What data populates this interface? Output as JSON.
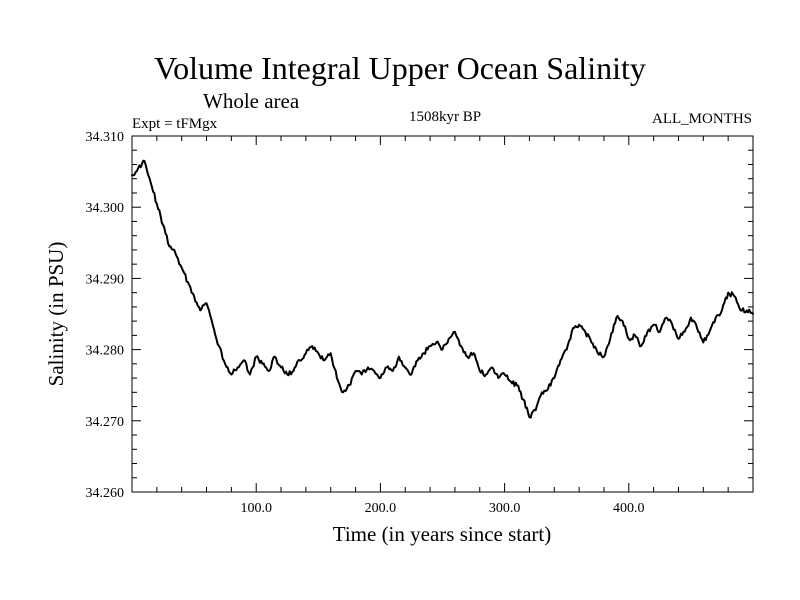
{
  "chart_data": {
    "type": "line",
    "title": "Volume Integral Upper Ocean Salinity",
    "subtitle": "Whole area",
    "annotations": {
      "left": "Expt = tFMgx",
      "center": "1508kyr BP",
      "right": "ALL_MONTHS"
    },
    "xlabel": "Time (in years since start)",
    "ylabel": "Salinity (in PSU)",
    "xlim": [
      0,
      500
    ],
    "ylim": [
      34.26,
      34.31
    ],
    "x_ticks": [
      100,
      200,
      300,
      400
    ],
    "x_tick_labels": [
      "100.0",
      "200.0",
      "300.0",
      "400.0"
    ],
    "y_ticks": [
      34.26,
      34.27,
      34.28,
      34.29,
      34.3,
      34.31
    ],
    "y_tick_labels": [
      "34.260",
      "34.270",
      "34.280",
      "34.290",
      "34.300",
      "34.310"
    ],
    "grid": false,
    "series": [
      {
        "name": "Salinity",
        "x": [
          0,
          5,
          10,
          15,
          20,
          25,
          30,
          35,
          40,
          45,
          50,
          55,
          60,
          65,
          70,
          75,
          80,
          85,
          90,
          95,
          100,
          105,
          110,
          115,
          120,
          125,
          130,
          135,
          140,
          145,
          150,
          155,
          160,
          165,
          170,
          175,
          180,
          185,
          190,
          195,
          200,
          205,
          210,
          215,
          220,
          225,
          230,
          235,
          240,
          245,
          250,
          255,
          260,
          265,
          270,
          275,
          280,
          285,
          290,
          295,
          300,
          305,
          310,
          315,
          320,
          325,
          330,
          335,
          340,
          345,
          350,
          355,
          360,
          365,
          370,
          375,
          380,
          385,
          390,
          395,
          400,
          405,
          410,
          415,
          420,
          425,
          430,
          435,
          440,
          445,
          450,
          455,
          460,
          465,
          470,
          475,
          480,
          485,
          490,
          495,
          500
        ],
        "values": [
          34.3045,
          34.3055,
          34.3065,
          34.3035,
          34.3005,
          34.2975,
          34.2945,
          34.2935,
          34.2915,
          34.2895,
          34.2875,
          34.2855,
          34.2865,
          34.2835,
          34.2805,
          34.278,
          34.2765,
          34.2775,
          34.2785,
          34.2765,
          34.279,
          34.278,
          34.277,
          34.279,
          34.2775,
          34.2765,
          34.277,
          34.2785,
          34.2795,
          34.2805,
          34.2795,
          34.2785,
          34.2795,
          34.276,
          34.274,
          34.275,
          34.277,
          34.2765,
          34.2775,
          34.277,
          34.276,
          34.2775,
          34.277,
          34.279,
          34.2775,
          34.2765,
          34.2785,
          34.2795,
          34.2805,
          34.281,
          34.28,
          34.2815,
          34.2825,
          34.2805,
          34.279,
          34.2795,
          34.277,
          34.2765,
          34.2775,
          34.276,
          34.2765,
          34.2755,
          34.275,
          34.273,
          34.2705,
          34.2715,
          34.274,
          34.2745,
          34.276,
          34.2785,
          34.28,
          34.283,
          34.2835,
          34.2825,
          34.281,
          34.2795,
          34.279,
          34.2815,
          34.2845,
          34.284,
          34.2815,
          34.282,
          34.2805,
          34.2825,
          34.2835,
          34.2825,
          34.2845,
          34.2835,
          34.2815,
          34.2825,
          34.2845,
          34.283,
          34.281,
          34.2825,
          34.2845,
          34.2855,
          34.288,
          34.2875,
          34.2855,
          34.2855,
          34.285
        ]
      }
    ],
    "colors": {
      "line": "#000000",
      "axes": "#000000",
      "background": "#ffffff"
    }
  }
}
